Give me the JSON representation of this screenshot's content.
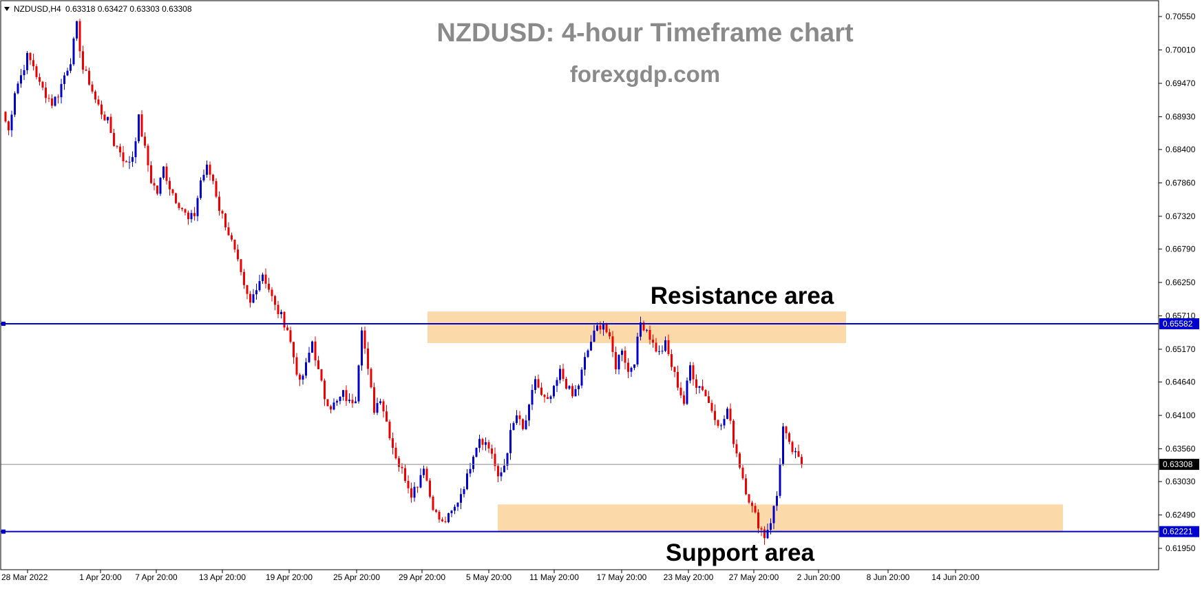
{
  "header": {
    "symbol": "NZDUSD,H4",
    "ohlc": "0.63318 0.63427 0.63303 0.63308"
  },
  "title": "NZDUSD: 4-hour Timeframe chart",
  "subtitle": "forexgdp.com",
  "annotations": {
    "resistance_label": "Resistance area",
    "support_label": "Support area"
  },
  "colors": {
    "bull": "#0000cc",
    "bear": "#ee0000",
    "zone": "#fbd9a8",
    "level_line": "#0000cc",
    "current_line": "#8a8a8a",
    "title": "#8a8a8a"
  },
  "chart_data": {
    "type": "candlestick",
    "symbol": "NZDUSD",
    "timeframe": "H4",
    "ylim": [
      0.6168,
      0.708
    ],
    "y_ticks": [
      "0.70550",
      "0.70010",
      "0.69470",
      "0.68930",
      "0.68400",
      "0.67860",
      "0.67320",
      "0.66790",
      "0.66250",
      "0.65710",
      "0.65170",
      "0.64640",
      "0.64100",
      "0.63560",
      "0.63030",
      "0.62490",
      "0.61950"
    ],
    "x_ticks": [
      "28 Mar 2022",
      "1 Apr 20:00",
      "7 Apr 20:00",
      "13 Apr 20:00",
      "19 Apr 20:00",
      "25 Apr 20:00",
      "29 Apr 20:00",
      "5 May 20:00",
      "11 May 20:00",
      "17 May 20:00",
      "23 May 20:00",
      "27 May 20:00",
      "2 Jun 20:00",
      "8 Jun 20:00",
      "14 Jun 20:00"
    ],
    "levels": {
      "resistance": "0.65582",
      "support": "0.62221",
      "current": "0.63308"
    },
    "zones": [
      {
        "name": "Resistance area",
        "low": 0.6527,
        "high": 0.6578,
        "from": "29 Apr",
        "to": "3 Jun"
      },
      {
        "name": "Support area",
        "low": 0.6222,
        "high": 0.6266,
        "from": "5 May",
        "to": "20 Jun"
      }
    ],
    "path": [
      0.6901,
      0.687,
      0.6935,
      0.696,
      0.699,
      0.6976,
      0.6945,
      0.693,
      0.6915,
      0.693,
      0.696,
      0.6985,
      0.704,
      0.697,
      0.695,
      0.692,
      0.69,
      0.6885,
      0.685,
      0.6838,
      0.6815,
      0.683,
      0.689,
      0.684,
      0.679,
      0.677,
      0.681,
      0.678,
      0.676,
      0.6745,
      0.6725,
      0.6735,
      0.679,
      0.681,
      0.679,
      0.6745,
      0.672,
      0.669,
      0.6655,
      0.6615,
      0.659,
      0.662,
      0.664,
      0.6615,
      0.6585,
      0.657,
      0.655,
      0.6505,
      0.646,
      0.649,
      0.653,
      0.648,
      0.644,
      0.6425,
      0.643,
      0.6445,
      0.643,
      0.644,
      0.6555,
      0.648,
      0.642,
      0.644,
      0.64,
      0.636,
      0.633,
      0.631,
      0.6285,
      0.63,
      0.633,
      0.628,
      0.625,
      0.6235,
      0.6245,
      0.626,
      0.6285,
      0.631,
      0.635,
      0.6375,
      0.6365,
      0.635,
      0.6305,
      0.633,
      0.638,
      0.641,
      0.6385,
      0.642,
      0.647,
      0.644,
      0.643,
      0.645,
      0.648,
      0.646,
      0.644,
      0.646,
      0.65,
      0.653,
      0.6552,
      0.656,
      0.653,
      0.649,
      0.652,
      0.648,
      0.65,
      0.656,
      0.655,
      0.6525,
      0.651,
      0.6525,
      0.649,
      0.646,
      0.643,
      0.649,
      0.646,
      0.6455,
      0.643,
      0.641,
      0.639,
      0.642,
      0.637,
      0.633,
      0.629,
      0.626,
      0.6235,
      0.6215,
      0.624,
      0.628,
      0.639,
      0.636,
      0.6345,
      0.6331
    ]
  }
}
